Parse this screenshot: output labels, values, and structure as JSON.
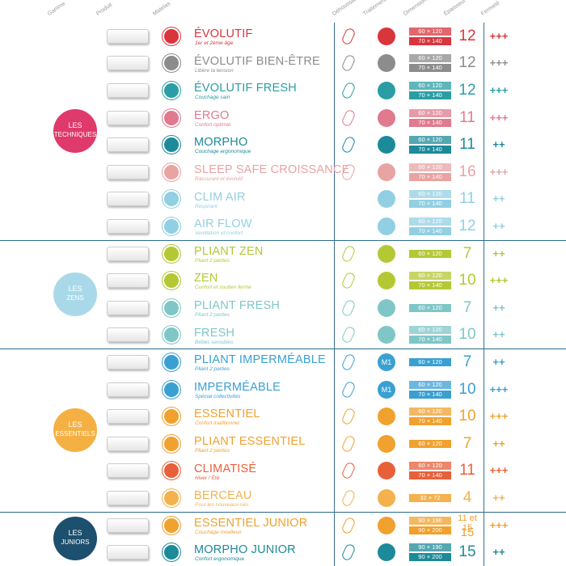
{
  "header": {
    "columns": [
      "Gamme",
      "Produit",
      "Matelas",
      "Déhoussable",
      "Traitement",
      "Dimensions (cm)",
      "Épaisseur",
      "Fermeté"
    ]
  },
  "groups": [
    {
      "label": [
        "LES",
        "TECHNIQUES"
      ],
      "color": "#e0396c",
      "rows": [
        {
          "name": "ÉVOLUTIF",
          "subtitle": "1er et 2ème âge",
          "color": "#d8353d",
          "removable": true,
          "dimensions": [
            "60 × 120",
            "70 × 140"
          ],
          "thickness": 12,
          "firmness": "+++"
        },
        {
          "name": "ÉVOLUTIF BIEN-ÊTRE",
          "subtitle": "Libère la tension",
          "color": "#8c8c8c",
          "removable": true,
          "dimensions": [
            "60 × 120",
            "70 × 140"
          ],
          "thickness": 12,
          "firmness": "+++"
        },
        {
          "name": "ÉVOLUTIF FRESH",
          "subtitle": "Couchage sain",
          "color": "#2a9ea4",
          "removable": true,
          "dimensions": [
            "60 × 120",
            "70 × 140"
          ],
          "thickness": 12,
          "firmness": "+++"
        },
        {
          "name": "ERGO",
          "subtitle": "Confort optimal",
          "color": "#e07a8e",
          "removable": true,
          "dimensions": [
            "60 × 120",
            "70 × 140"
          ],
          "thickness": 11,
          "firmness": "+++"
        },
        {
          "name": "MORPHO",
          "subtitle": "Couchage ergonomique",
          "color": "#1d8a99",
          "removable": true,
          "dimensions": [
            "60 × 120",
            "70 × 140"
          ],
          "thickness": 11,
          "firmness": "++"
        },
        {
          "name": "SLEEP SAFE CROISSANCE",
          "subtitle": "Rassurant et évolutif",
          "color": "#e8a3a3",
          "removable": true,
          "dimensions": [
            "60 × 120",
            "70 × 140"
          ],
          "thickness": 16,
          "firmness": "+++"
        },
        {
          "name": "CLIM AIR",
          "subtitle": "Respirant",
          "color": "#92cfe2",
          "removable": false,
          "dimensions": [
            "60 × 120",
            "70 × 140"
          ],
          "thickness": 11,
          "firmness": "++"
        },
        {
          "name": "AIR FLOW",
          "subtitle": "Ventilation et confort",
          "color": "#92cfe2",
          "removable": false,
          "dimensions": [
            "60 × 120",
            "70 × 140"
          ],
          "thickness": 12,
          "firmness": "++"
        }
      ]
    },
    {
      "label": [
        "LES",
        "ZENS"
      ],
      "color": "#a9d9e9",
      "rows": [
        {
          "name": "PLIANT ZEN",
          "subtitle": "Pliant 2 parties",
          "color": "#b4c834",
          "removable": true,
          "dimensions": [
            "60 × 120"
          ],
          "thickness": 7,
          "firmness": "++"
        },
        {
          "name": "ZEN",
          "subtitle": "Confort et soutien ferme",
          "color": "#b4c834",
          "removable": true,
          "dimensions": [
            "60 × 120",
            "70 × 140"
          ],
          "thickness": 10,
          "firmness": "+++"
        },
        {
          "name": "PLIANT FRESH",
          "subtitle": "Pliant 2 parties",
          "color": "#80c6c6",
          "removable": true,
          "dimensions": [
            "60 × 120"
          ],
          "thickness": 7,
          "firmness": "++"
        },
        {
          "name": "FRESH",
          "subtitle": "Bébés sensibles",
          "color": "#80c6c6",
          "removable": true,
          "dimensions": [
            "60 × 120",
            "70 × 140"
          ],
          "thickness": 10,
          "firmness": "++"
        }
      ]
    },
    {
      "label": [
        "LES",
        "ESSENTIELS"
      ],
      "color": "#f5b043",
      "rows": [
        {
          "name": "PLIANT IMPERMÉABLE",
          "subtitle": "Pliant 2 parties",
          "color": "#3aa0d2",
          "removable": true,
          "treatment": "M1",
          "dimensions": [
            "60 × 120"
          ],
          "thickness": 7,
          "firmness": "++"
        },
        {
          "name": "IMPERMÉABLE",
          "subtitle": "Spécial collectivités",
          "color": "#3aa0d2",
          "removable": true,
          "treatment": "M1",
          "dimensions": [
            "60 × 120",
            "70 × 140"
          ],
          "thickness": 10,
          "firmness": "+++"
        },
        {
          "name": "ESSENTIEL",
          "subtitle": "Confort traditionnel",
          "color": "#f0a12e",
          "removable": true,
          "dimensions": [
            "60 × 120",
            "70 × 140"
          ],
          "thickness": 10,
          "firmness": "+++"
        },
        {
          "name": "PLIANT ESSENTIEL",
          "subtitle": "Pliant 2 parties",
          "color": "#f0a12e",
          "removable": true,
          "dimensions": [
            "60 × 120"
          ],
          "thickness": 7,
          "firmness": "++"
        },
        {
          "name": "CLIMATISÉ",
          "subtitle": "Hiver / Été",
          "color": "#e8603a",
          "removable": true,
          "dimensions": [
            "60 × 120",
            "70 × 140"
          ],
          "thickness": 11,
          "firmness": "+++"
        },
        {
          "name": "BERCEAU",
          "subtitle": "Pour les nouveaux-nés",
          "color": "#f3b24e",
          "removable": true,
          "dimensions": [
            "32 × 72"
          ],
          "thickness": 4,
          "firmness": "++"
        }
      ]
    },
    {
      "label": [
        "LES",
        "JUNIORS"
      ],
      "color": "#1d4f6e",
      "rows": [
        {
          "name": "ESSENTIEL JUNIOR",
          "subtitle": "Couchage moelleux",
          "color": "#f0a12e",
          "removable": true,
          "dimensions": [
            "90 × 190",
            "90 × 200"
          ],
          "thickness": [
            "11 et 15",
            15
          ],
          "firmness": "+++"
        },
        {
          "name": "MORPHO JUNIOR",
          "subtitle": "Confort ergonomique",
          "color": "#1d8a99",
          "removable": true,
          "dimensions": [
            "90 × 190",
            "90 × 200"
          ],
          "thickness": 15,
          "firmness": "++"
        }
      ]
    }
  ]
}
